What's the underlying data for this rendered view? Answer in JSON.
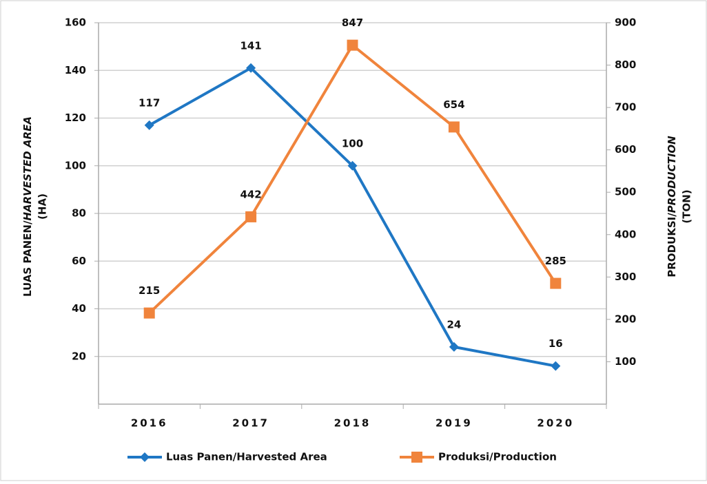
{
  "chart_data": {
    "type": "line",
    "categories": [
      "2016",
      "2017",
      "2018",
      "2019",
      "2020"
    ],
    "series": [
      {
        "name": "Luas Panen/Harvested Area",
        "color": "#1f77c4",
        "marker": "diamond",
        "values": [
          117,
          141,
          100,
          24,
          16
        ]
      },
      {
        "name": "Produksi/Production",
        "color": "#f0843c",
        "marker": "square",
        "axis": "y2",
        "values": [
          215,
          442,
          847,
          654,
          285
        ]
      }
    ],
    "ylabel": [
      "LUAS PANEN/",
      "HARVESTED AREA",
      "(HA)"
    ],
    "y2label": [
      "PRODUKSI/",
      "PRODUCTION",
      "(TON)"
    ],
    "ylim": [
      0,
      160
    ],
    "yticks": [
      20,
      40,
      60,
      80,
      100,
      120,
      140,
      160
    ],
    "y2lim": [
      0,
      900
    ],
    "y2ticks": [
      100,
      200,
      300,
      400,
      500,
      600,
      700,
      800,
      900
    ],
    "grid": true,
    "legend": "bottom"
  }
}
